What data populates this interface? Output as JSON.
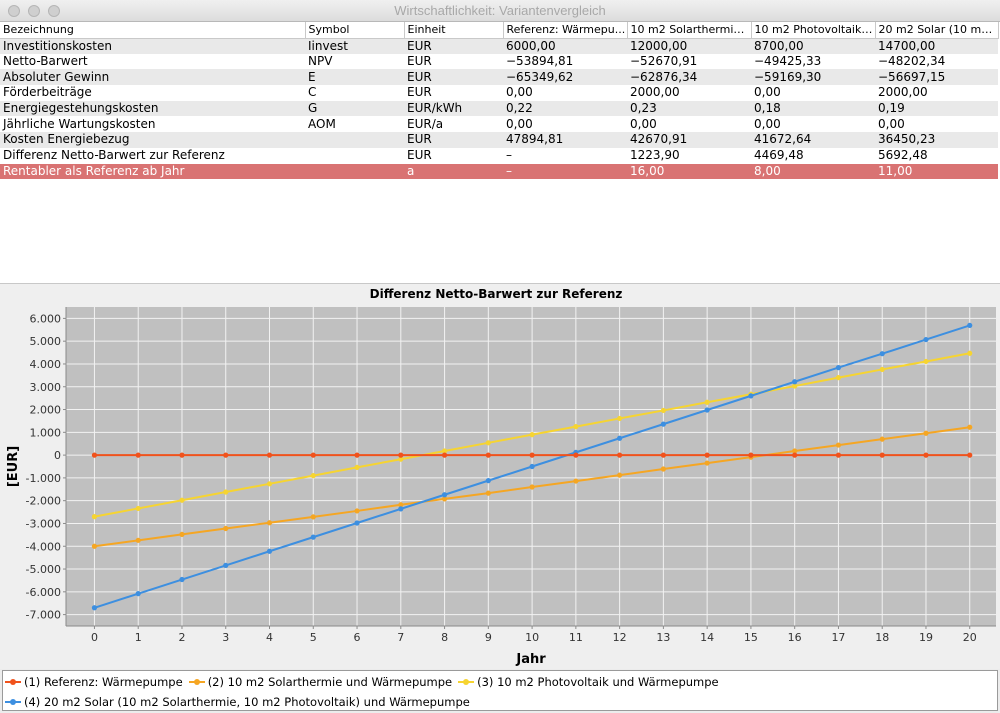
{
  "window": {
    "title": "Wirtschaftlichkeit: Variantenvergleich"
  },
  "table": {
    "headers": [
      "Bezeichnung",
      "Symbol",
      "Einheit",
      "Referenz: Wärmepu...",
      "10 m2 Solarthermie ...",
      "10 m2 Photovoltaik ...",
      "20 m2 Solar (10 m2 ..."
    ],
    "rows": [
      [
        "Investitionskosten",
        "Iinvest",
        "EUR",
        "6000,00",
        "12000,00",
        "8700,00",
        "14700,00"
      ],
      [
        "Netto-Barwert",
        "NPV",
        "EUR",
        "−53894,81",
        "−52670,91",
        "−49425,33",
        "−48202,34"
      ],
      [
        "Absoluter Gewinn",
        "E",
        "EUR",
        "−65349,62",
        "−62876,34",
        "−59169,30",
        "−56697,15"
      ],
      [
        "Förderbeiträge",
        "C",
        "EUR",
        "0,00",
        "2000,00",
        "0,00",
        "2000,00"
      ],
      [
        "Energiegestehungskosten",
        "G",
        "EUR/kWh",
        "0,22",
        "0,23",
        "0,18",
        "0,19"
      ],
      [
        "Jährliche Wartungskosten",
        "AOM",
        "EUR/a",
        "0,00",
        "0,00",
        "0,00",
        "0,00"
      ],
      [
        "Kosten Energiebezug",
        "",
        "EUR",
        "47894,81",
        "42670,91",
        "41672,64",
        "36450,23"
      ],
      [
        "Differenz Netto-Barwert zur Referenz",
        "",
        "EUR",
        "–",
        "1223,90",
        "4469,48",
        "5692,48"
      ],
      [
        "Rentabler als Referenz ab Jahr",
        "",
        "a",
        "–",
        "16,00",
        "8,00",
        "11,00"
      ]
    ]
  },
  "chart_data": {
    "type": "line",
    "title": "Differenz Netto-Barwert zur Referenz",
    "xlabel": "Jahr",
    "ylabel": "[EUR]",
    "x": [
      0,
      1,
      2,
      3,
      4,
      5,
      6,
      7,
      8,
      9,
      10,
      11,
      12,
      13,
      14,
      15,
      16,
      17,
      18,
      19,
      20
    ],
    "ylim": [
      -7500,
      6500
    ],
    "yticks": [
      -7000,
      -6000,
      -5000,
      -4000,
      -3000,
      -2000,
      -1000,
      0,
      1000,
      2000,
      3000,
      4000,
      5000,
      6000
    ],
    "ytick_labels": [
      "-7.000",
      "-6.000",
      "-5.000",
      "-4.000",
      "-3.000",
      "-2.000",
      "-1.000",
      "0",
      "1.000",
      "2.000",
      "3.000",
      "4.000",
      "5.000",
      "6.000"
    ],
    "grid": true,
    "legend_position": "bottom",
    "series": [
      {
        "name": "(1) Referenz: Wärmepumpe",
        "color": "#f0521c",
        "values": [
          0,
          0,
          0,
          0,
          0,
          0,
          0,
          0,
          0,
          0,
          0,
          0,
          0,
          0,
          0,
          0,
          0,
          0,
          0,
          0,
          0
        ]
      },
      {
        "name": "(2) 10 m2 Solarthermie und Wärmepumpe",
        "color": "#f5a623",
        "values": [
          -4000,
          -3740,
          -3480,
          -3220,
          -2970,
          -2710,
          -2450,
          -2180,
          -1920,
          -1670,
          -1400,
          -1140,
          -880,
          -610,
          -350,
          -90,
          180,
          440,
          700,
          960,
          1224
        ]
      },
      {
        "name": "(3) 10 m2 Photovoltaik und Wärmepumpe",
        "color": "#f6d431",
        "values": [
          -2700,
          -2340,
          -1980,
          -1620,
          -1260,
          -900,
          -540,
          -180,
          180,
          540,
          900,
          1250,
          1610,
          1960,
          2320,
          2670,
          3030,
          3400,
          3760,
          4110,
          4469
        ]
      },
      {
        "name": "(4) 20 m2 Solar (10 m2 Solarthermie, 10 m2 Photovoltaik) und Wärmepumpe",
        "color": "#3d8fe0",
        "values": [
          -6700,
          -6080,
          -5460,
          -4840,
          -4220,
          -3600,
          -2980,
          -2360,
          -1740,
          -1120,
          -500,
          120,
          740,
          1360,
          1980,
          2600,
          3220,
          3840,
          4450,
          5070,
          5692
        ]
      }
    ]
  }
}
